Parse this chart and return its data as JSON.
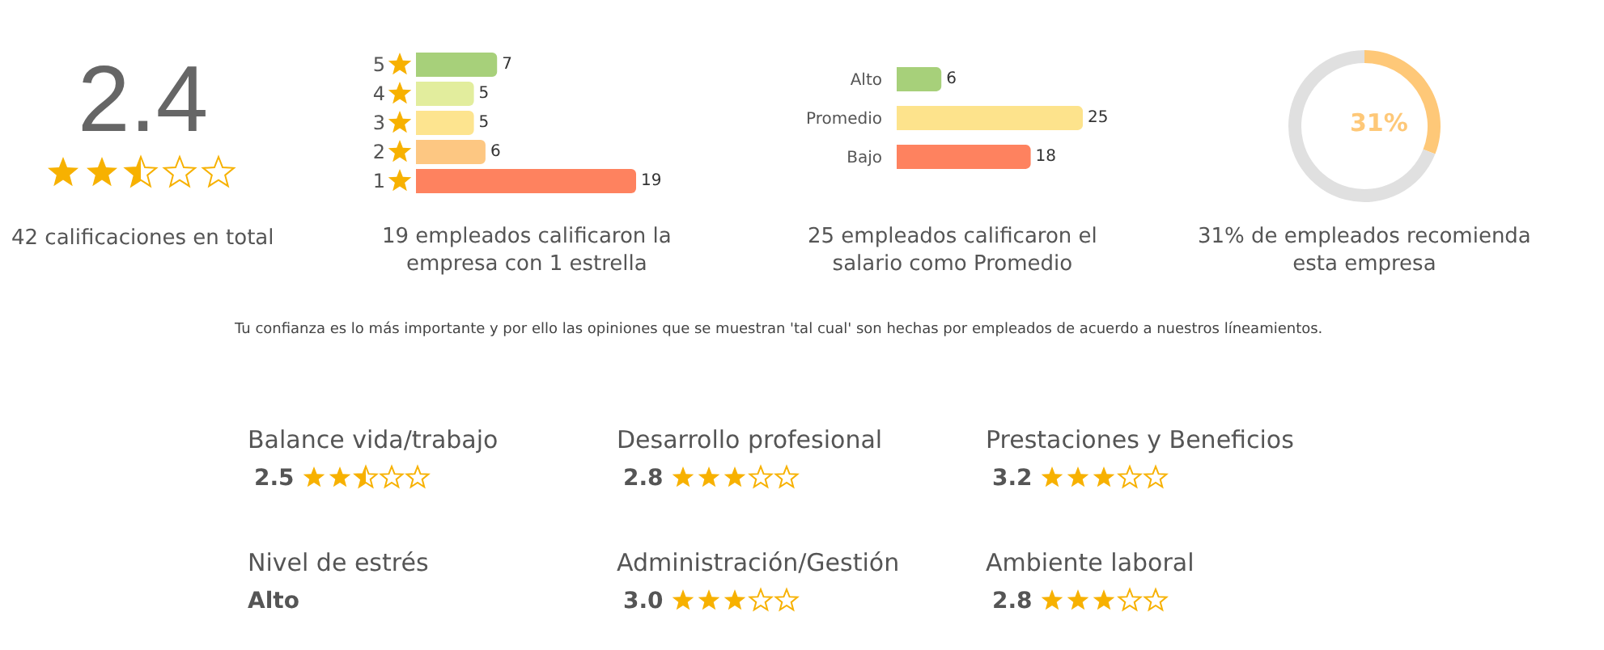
{
  "chart_data": [
    {
      "type": "other",
      "values": [
        2.4
      ],
      "value_labels": [
        "2.4"
      ],
      "annotations": [
        "42 calificaciones en total"
      ]
    },
    {
      "type": "bar",
      "orientation": "horizontal",
      "categories": [
        "5",
        "4",
        "3",
        "2",
        "1"
      ],
      "values": [
        7,
        5,
        5,
        6,
        19
      ],
      "colors": [
        "#a7d07a",
        "#e2ed9d",
        "#fde48f",
        "#fdc782",
        "#fe825f"
      ],
      "data_labels": true,
      "annotations": [
        "19 empleados calificaron la empresa con 1 estrella"
      ]
    },
    {
      "type": "bar",
      "orientation": "horizontal",
      "categories": [
        "Alto",
        "Promedio",
        "Bajo"
      ],
      "values": [
        6,
        25,
        18
      ],
      "colors": [
        "#a7d07a",
        "#fde38c",
        "#fe825f"
      ],
      "data_labels": true,
      "annotations": [
        "25 empleados calificaron el salario como Promedio"
      ]
    },
    {
      "type": "donut",
      "categories": [
        null,
        null
      ],
      "values": [
        31,
        69
      ],
      "colors": [
        "#fec878",
        "#e0e0e0"
      ],
      "value_labels": [
        "31%",
        null
      ],
      "annotations": [
        "31% de empleados recomienda esta empresa"
      ]
    },
    {
      "type": "other",
      "annotations": [
        "Tu confianza es lo más importante y por ello las opiniones que se muestran 'tal cual' son hechas por empleados de acuerdo a nuestros líneamientos."
      ]
    },
    {
      "type": "other",
      "categories": [
        "Balance vida/trabajo",
        "Desarrollo profesional",
        "Prestaciones y Beneficios",
        "Nivel de estrés",
        "Administración/Gestión",
        "Ambiente laboral"
      ],
      "values": [
        2.5,
        2.8,
        3.2,
        null,
        3.0,
        2.8
      ],
      "value_labels": [
        "2.5",
        "2.8",
        "3.2",
        "Alto",
        "3.0",
        "2.8"
      ]
    }
  ]
}
